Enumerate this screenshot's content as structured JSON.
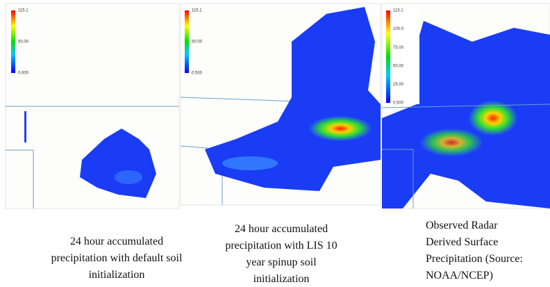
{
  "panels": [
    {
      "colorbar_labels": [
        "115.1",
        "50.00",
        "0.000"
      ],
      "caption": [
        "24 hour accumulated",
        "precipitation with default soil",
        "initialization"
      ]
    },
    {
      "colorbar_labels": [
        "115.1",
        "50.00",
        "0.500"
      ],
      "caption": [
        "24 hour accumulated",
        "precipitation with LIS 10",
        "year spinup soil",
        "initialization"
      ]
    },
    {
      "colorbar_labels": [
        "115.1",
        "100.0",
        "75.00",
        "50.00",
        "25.00",
        "0.500"
      ],
      "caption": [
        "Observed Radar",
        "Derived Surface",
        "Precipitation (Source:",
        "NOAA/NCEP)"
      ]
    }
  ]
}
